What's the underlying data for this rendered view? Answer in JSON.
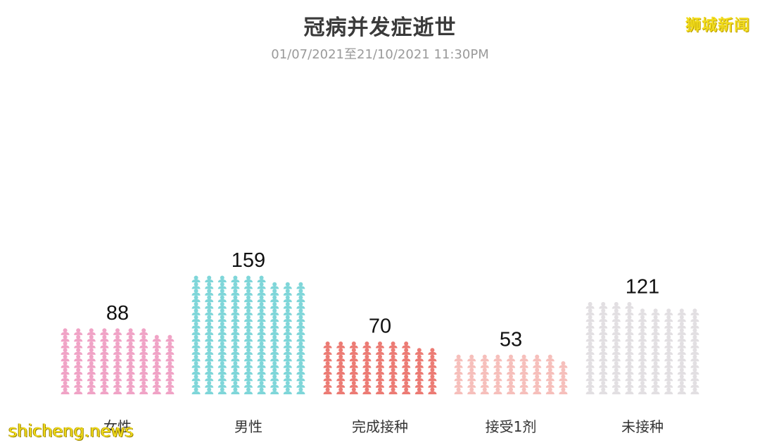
{
  "title": "冠病并发症逝世",
  "subtitle": "01/07/2021至21/10/2021 11:30PM",
  "brand": "狮城新闻",
  "watermark": "shicheng.news",
  "chart_data": {
    "type": "bar",
    "title": "冠病并发症逝世",
    "subtitle": "01/07/2021至21/10/2021 11:30PM",
    "categories": [
      "女性",
      "男性",
      "完成接种",
      "接受1剂",
      "未接种"
    ],
    "values": [
      88,
      159,
      70,
      53,
      121
    ],
    "colors": [
      "#f0a3c6",
      "#7fd6d9",
      "#ec7b74",
      "#f6bfbb",
      "#e2dfe2"
    ],
    "icon": "person-icon",
    "icons_per_row": 9,
    "grid": false,
    "legend": "none"
  }
}
